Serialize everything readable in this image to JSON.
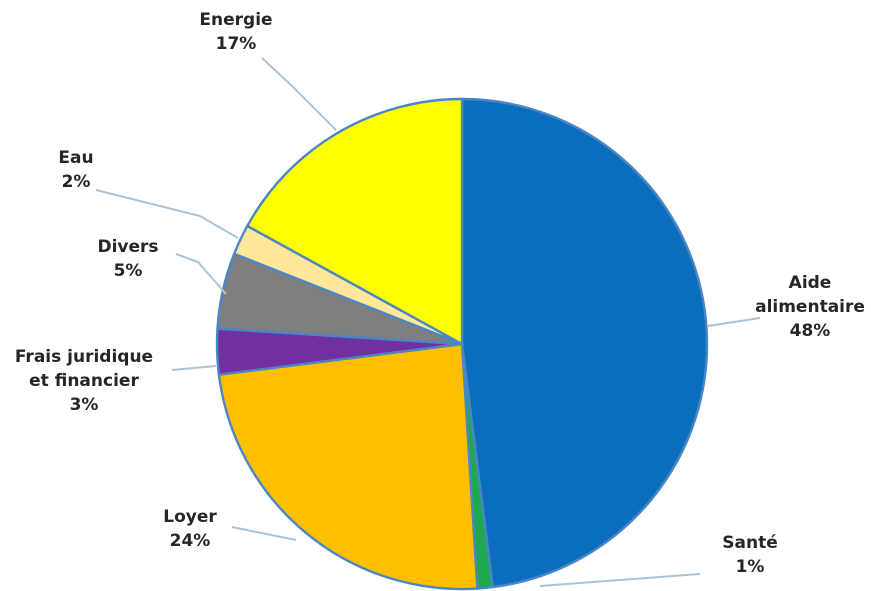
{
  "chart_data": {
    "type": "pie",
    "title": "",
    "start_angle_deg": 0,
    "direction": "clockwise",
    "slices": [
      {
        "label_lines": [
          "Aide",
          "alimentaire"
        ],
        "percent_label": "48%",
        "value": 48,
        "color": "#0a6ebd"
      },
      {
        "label_lines": [
          "Santé"
        ],
        "percent_label": "1%",
        "value": 1,
        "color": "#1ea94f"
      },
      {
        "label_lines": [
          "Loyer"
        ],
        "percent_label": "24%",
        "value": 24,
        "color": "#ffbf00"
      },
      {
        "label_lines": [
          "Frais juridique",
          "et financier"
        ],
        "percent_label": "3%",
        "value": 3,
        "color": "#7030a0"
      },
      {
        "label_lines": [
          "Divers"
        ],
        "percent_label": "5%",
        "value": 5,
        "color": "#7f7f7f"
      },
      {
        "label_lines": [
          "Eau"
        ],
        "percent_label": "2%",
        "value": 2,
        "color": "#ffe699"
      },
      {
        "label_lines": [
          "Energie"
        ],
        "percent_label": "17%",
        "value": 17,
        "color": "#ffff00"
      }
    ]
  }
}
